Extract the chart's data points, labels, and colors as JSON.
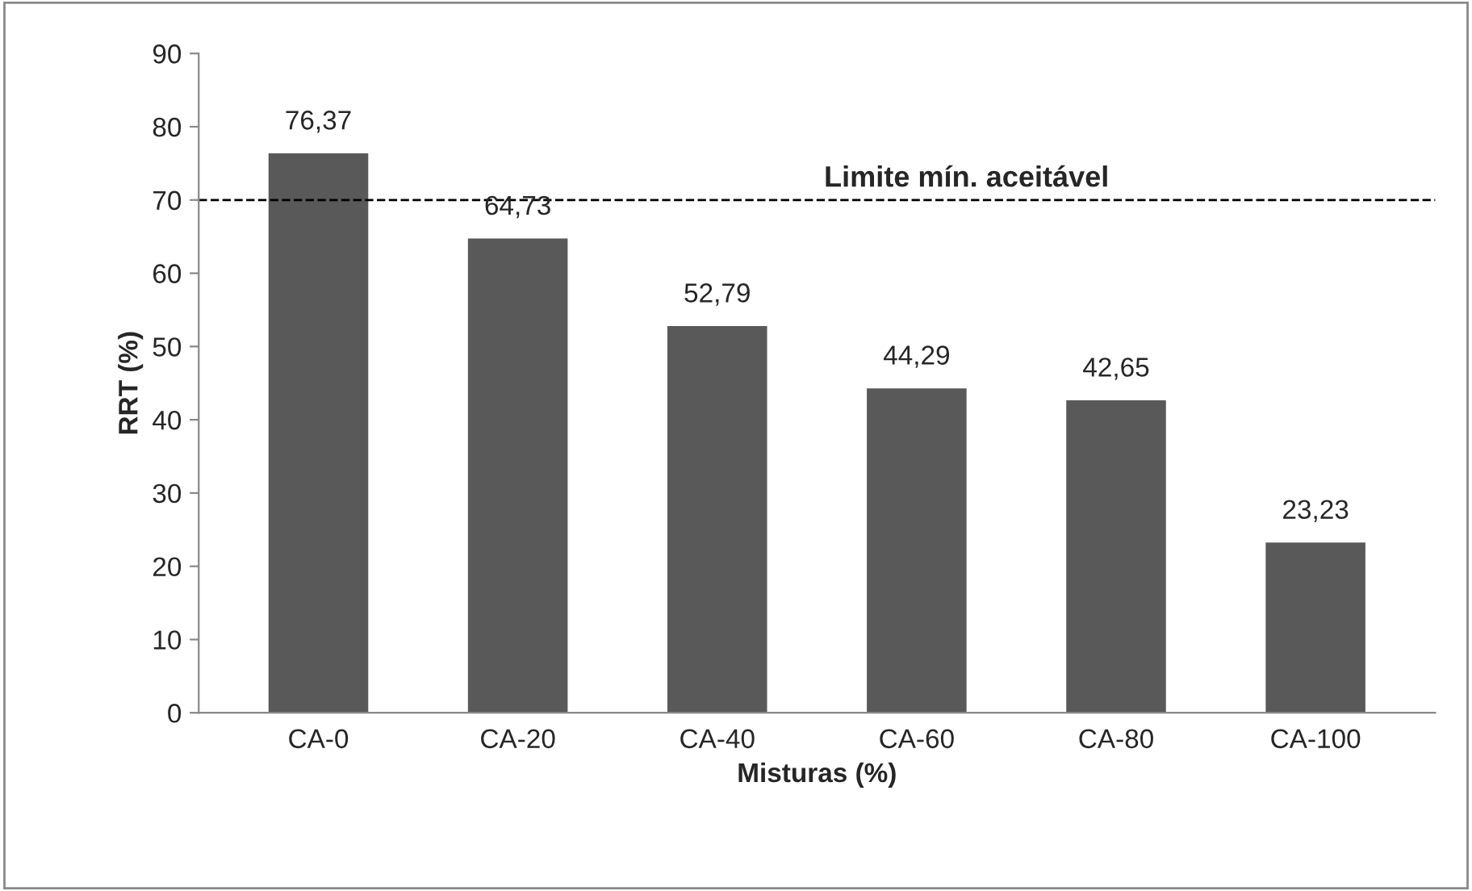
{
  "chart_data": {
    "type": "bar",
    "xlabel": "Misturas (%)",
    "ylabel": "RRT (%)",
    "categories": [
      "CA-0",
      "CA-20",
      "CA-40",
      "CA-60",
      "CA-80",
      "CA-100"
    ],
    "values": [
      76.37,
      64.73,
      52.79,
      44.29,
      42.65,
      23.23
    ],
    "value_labels": [
      "76,37",
      "64,73",
      "52,79",
      "44,29",
      "42,65",
      "23,23"
    ],
    "color": "#595959",
    "ylim": [
      0,
      90
    ],
    "yticks": [
      0,
      10,
      20,
      30,
      40,
      50,
      60,
      70,
      80,
      90
    ],
    "ref_lines": [
      {
        "axis": "y",
        "value": 70,
        "label": "Limite mín. aceitável",
        "color": "#000000",
        "line_style": "dashed"
      }
    ],
    "grid": false,
    "legend": false
  }
}
